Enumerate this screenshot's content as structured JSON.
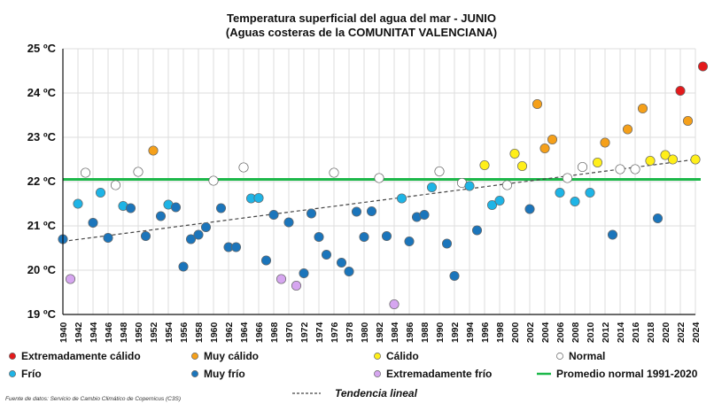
{
  "chart_data": {
    "type": "scatter",
    "title": "Temperatura superficial del agua del mar - JUNIO",
    "subtitle": "(Aguas costeras de la COMUNITAT VALENCIANA)",
    "y_ticks": [
      "19 ºC",
      "20 ºC",
      "21 ºC",
      "22 ºC",
      "23 ºC",
      "24 ºC",
      "25 ºC"
    ],
    "ylim": [
      19,
      25
    ],
    "xlim": [
      1940,
      2024
    ],
    "x_step": 2,
    "grid": true,
    "average_line": {
      "label": "Promedio normal 1991-2020",
      "value": 22.05,
      "color": "#1db84a"
    },
    "trend": {
      "label": "Tendencia lineal",
      "start": [
        1940,
        20.65
      ],
      "end": [
        2024,
        22.5
      ]
    },
    "categories": [
      {
        "key": "ext_calido",
        "label": "Extremadamente cálido",
        "color": "#e31a1c"
      },
      {
        "key": "muy_calido",
        "label": "Muy cálido",
        "color": "#f5a01a"
      },
      {
        "key": "calido",
        "label": "Cálido",
        "color": "#ffef1a"
      },
      {
        "key": "normal",
        "label": "Normal",
        "color": "#ffffff"
      },
      {
        "key": "frio",
        "label": "Frío",
        "color": "#1eb4e6"
      },
      {
        "key": "muy_frio",
        "label": "Muy frío",
        "color": "#1b75bb"
      },
      {
        "key": "ext_frio",
        "label": "Extremadamente frío",
        "color": "#d6a6f0"
      }
    ],
    "points": [
      {
        "year": 1940,
        "value": 20.7,
        "cat": "muy_frio"
      },
      {
        "year": 1941,
        "value": 19.8,
        "cat": "ext_frio"
      },
      {
        "year": 1942,
        "value": 21.5,
        "cat": "frio"
      },
      {
        "year": 1943,
        "value": 22.2,
        "cat": "normal"
      },
      {
        "year": 1944,
        "value": 21.07,
        "cat": "muy_frio"
      },
      {
        "year": 1945,
        "value": 21.75,
        "cat": "frio"
      },
      {
        "year": 1946,
        "value": 20.73,
        "cat": "muy_frio"
      },
      {
        "year": 1947,
        "value": 21.92,
        "cat": "normal"
      },
      {
        "year": 1948,
        "value": 21.45,
        "cat": "frio"
      },
      {
        "year": 1949,
        "value": 21.4,
        "cat": "muy_frio"
      },
      {
        "year": 1950,
        "value": 22.22,
        "cat": "normal"
      },
      {
        "year": 1951,
        "value": 20.77,
        "cat": "muy_frio"
      },
      {
        "year": 1952,
        "value": 22.7,
        "cat": "muy_calido"
      },
      {
        "year": 1953,
        "value": 21.22,
        "cat": "muy_frio"
      },
      {
        "year": 1954,
        "value": 21.48,
        "cat": "frio"
      },
      {
        "year": 1955,
        "value": 21.42,
        "cat": "muy_frio"
      },
      {
        "year": 1956,
        "value": 20.08,
        "cat": "muy_frio"
      },
      {
        "year": 1957,
        "value": 20.7,
        "cat": "muy_frio"
      },
      {
        "year": 1958,
        "value": 20.8,
        "cat": "muy_frio"
      },
      {
        "year": 1959,
        "value": 20.97,
        "cat": "muy_frio"
      },
      {
        "year": 1960,
        "value": 22.02,
        "cat": "normal"
      },
      {
        "year": 1961,
        "value": 21.4,
        "cat": "muy_frio"
      },
      {
        "year": 1962,
        "value": 20.52,
        "cat": "muy_frio"
      },
      {
        "year": 1963,
        "value": 20.52,
        "cat": "muy_frio"
      },
      {
        "year": 1964,
        "value": 22.32,
        "cat": "normal"
      },
      {
        "year": 1965,
        "value": 21.62,
        "cat": "frio"
      },
      {
        "year": 1966,
        "value": 21.63,
        "cat": "frio"
      },
      {
        "year": 1967,
        "value": 20.22,
        "cat": "muy_frio"
      },
      {
        "year": 1968,
        "value": 21.25,
        "cat": "muy_frio"
      },
      {
        "year": 1969,
        "value": 19.8,
        "cat": "ext_frio"
      },
      {
        "year": 1970,
        "value": 21.08,
        "cat": "muy_frio"
      },
      {
        "year": 1971,
        "value": 19.65,
        "cat": "ext_frio"
      },
      {
        "year": 1972,
        "value": 19.93,
        "cat": "muy_frio"
      },
      {
        "year": 1973,
        "value": 21.28,
        "cat": "muy_frio"
      },
      {
        "year": 1974,
        "value": 20.75,
        "cat": "muy_frio"
      },
      {
        "year": 1975,
        "value": 20.35,
        "cat": "muy_frio"
      },
      {
        "year": 1976,
        "value": 22.2,
        "cat": "normal"
      },
      {
        "year": 1977,
        "value": 20.17,
        "cat": "muy_frio"
      },
      {
        "year": 1978,
        "value": 19.97,
        "cat": "muy_frio"
      },
      {
        "year": 1979,
        "value": 21.32,
        "cat": "muy_frio"
      },
      {
        "year": 1980,
        "value": 20.75,
        "cat": "muy_frio"
      },
      {
        "year": 1981,
        "value": 21.33,
        "cat": "muy_frio"
      },
      {
        "year": 1982,
        "value": 22.08,
        "cat": "normal"
      },
      {
        "year": 1983,
        "value": 20.77,
        "cat": "muy_frio"
      },
      {
        "year": 1984,
        "value": 19.23,
        "cat": "ext_frio"
      },
      {
        "year": 1985,
        "value": 21.62,
        "cat": "frio"
      },
      {
        "year": 1986,
        "value": 20.65,
        "cat": "muy_frio"
      },
      {
        "year": 1987,
        "value": 21.2,
        "cat": "muy_frio"
      },
      {
        "year": 1988,
        "value": 21.25,
        "cat": "muy_frio"
      },
      {
        "year": 1989,
        "value": 21.87,
        "cat": "frio"
      },
      {
        "year": 1990,
        "value": 22.23,
        "cat": "normal"
      },
      {
        "year": 1991,
        "value": 20.6,
        "cat": "muy_frio"
      },
      {
        "year": 1992,
        "value": 19.87,
        "cat": "muy_frio"
      },
      {
        "year": 1993,
        "value": 21.97,
        "cat": "normal"
      },
      {
        "year": 1994,
        "value": 21.9,
        "cat": "frio"
      },
      {
        "year": 1995,
        "value": 20.9,
        "cat": "muy_frio"
      },
      {
        "year": 1996,
        "value": 22.37,
        "cat": "calido"
      },
      {
        "year": 1997,
        "value": 21.47,
        "cat": "frio"
      },
      {
        "year": 1998,
        "value": 21.57,
        "cat": "frio"
      },
      {
        "year": 1999,
        "value": 21.92,
        "cat": "normal"
      },
      {
        "year": 2000,
        "value": 22.63,
        "cat": "calido"
      },
      {
        "year": 2001,
        "value": 22.35,
        "cat": "calido"
      },
      {
        "year": 2002,
        "value": 21.38,
        "cat": "muy_frio"
      },
      {
        "year": 2003,
        "value": 23.75,
        "cat": "muy_calido"
      },
      {
        "year": 2004,
        "value": 22.75,
        "cat": "muy_calido"
      },
      {
        "year": 2005,
        "value": 22.95,
        "cat": "muy_calido"
      },
      {
        "year": 2006,
        "value": 21.75,
        "cat": "frio"
      },
      {
        "year": 2007,
        "value": 22.08,
        "cat": "normal"
      },
      {
        "year": 2008,
        "value": 21.55,
        "cat": "frio"
      },
      {
        "year": 2009,
        "value": 22.33,
        "cat": "normal"
      },
      {
        "year": 2010,
        "value": 21.75,
        "cat": "frio"
      },
      {
        "year": 2011,
        "value": 22.43,
        "cat": "calido"
      },
      {
        "year": 2012,
        "value": 22.88,
        "cat": "muy_calido"
      },
      {
        "year": 2013,
        "value": 20.8,
        "cat": "muy_frio"
      },
      {
        "year": 2014,
        "value": 22.28,
        "cat": "normal"
      },
      {
        "year": 2015,
        "value": 23.18,
        "cat": "muy_calido"
      },
      {
        "year": 2016,
        "value": 22.28,
        "cat": "normal"
      },
      {
        "year": 2017,
        "value": 23.65,
        "cat": "muy_calido"
      },
      {
        "year": 2018,
        "value": 22.47,
        "cat": "calido"
      },
      {
        "year": 2019,
        "value": 21.17,
        "cat": "muy_frio"
      },
      {
        "year": 2020,
        "value": 22.6,
        "cat": "calido"
      },
      {
        "year": 2021,
        "value": 22.5,
        "cat": "calido"
      },
      {
        "year": 2022,
        "value": 24.05,
        "cat": "ext_calido"
      },
      {
        "year": 2023,
        "value": 23.37,
        "cat": "muy_calido"
      },
      {
        "year": 2024,
        "value": 22.5,
        "cat": "calido"
      },
      {
        "year": 2025,
        "value": 24.6,
        "cat": "ext_calido"
      }
    ],
    "source": "Fuente de datos: Servicio de Cambio Climático de Copernicus (C3S)"
  }
}
